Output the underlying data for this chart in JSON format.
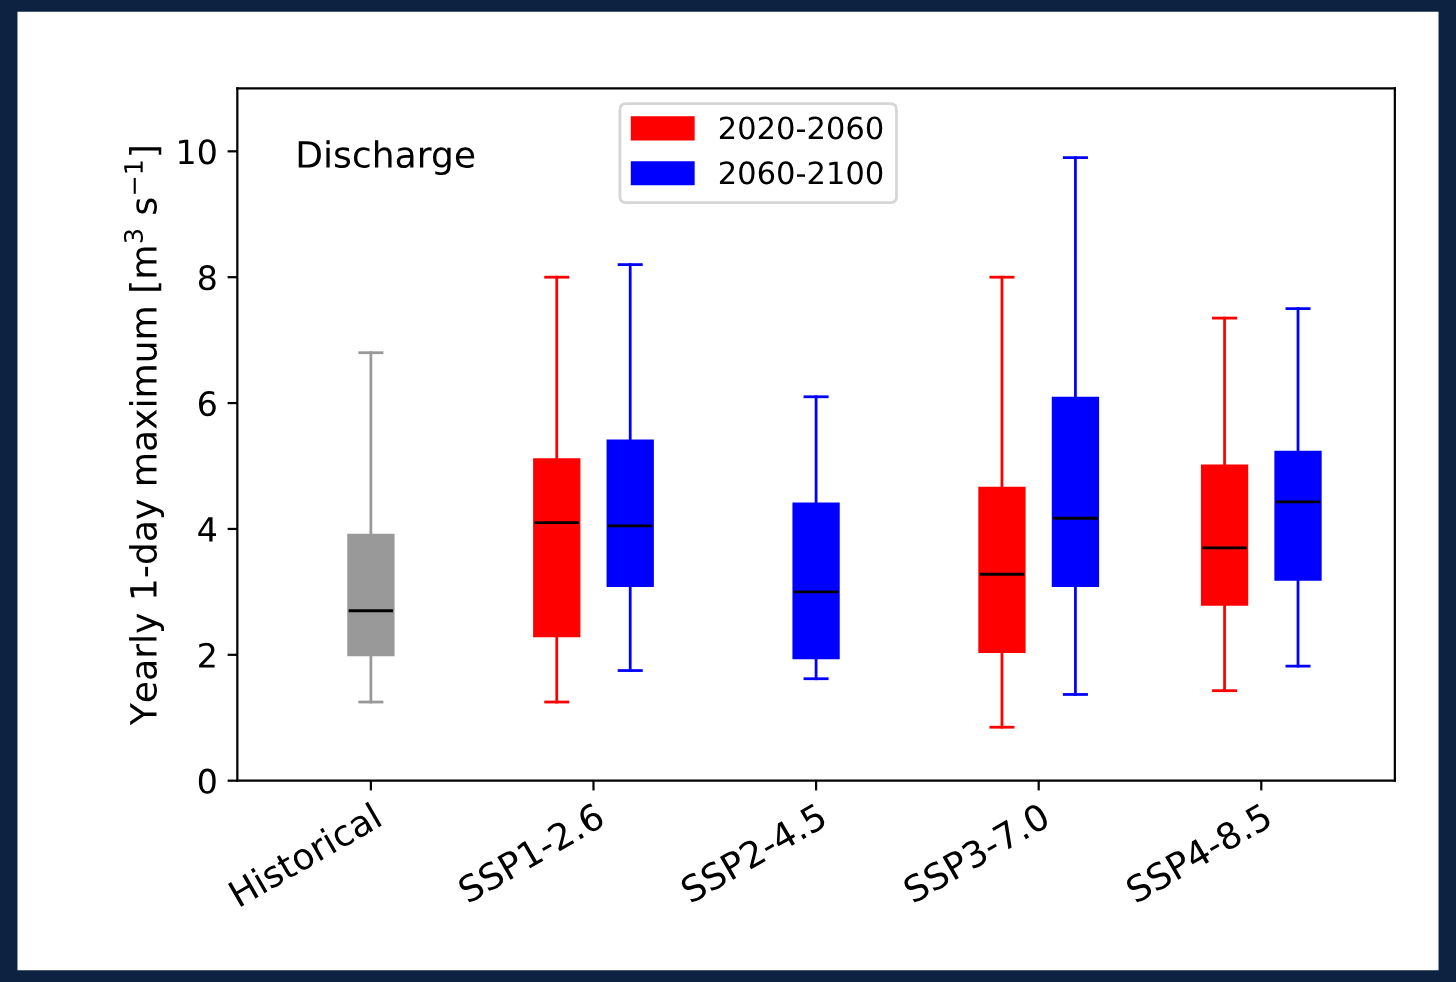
{
  "chart_data": {
    "type": "box",
    "ylabel": "Yearly 1-day maximum [m$^{3}$ s$^{−1}$]",
    "categories": [
      "Historical",
      "SSP1-2.6",
      "SSP2-4.5",
      "SSP3-7.0",
      "SSP4-8.5"
    ],
    "ylim": [
      0,
      11
    ],
    "yticks": [
      0,
      2,
      4,
      6,
      8,
      10
    ],
    "grid": false,
    "legend": "top",
    "annotations": [
      "Discharge"
    ],
    "series": [
      {
        "color": "#999999",
        "boxes": [
          {
            "low": 1.25,
            "q1": 2.0,
            "median": 2.7,
            "q3": 3.9,
            "high": 6.8
          },
          null,
          null,
          null,
          null
        ]
      },
      {
        "name": "2020-2060",
        "color": "#ff0000",
        "boxes": [
          null,
          {
            "low": 1.25,
            "q1": 2.3,
            "median": 4.1,
            "q3": 5.1,
            "high": 8.0
          },
          null,
          {
            "low": 0.85,
            "q1": 2.05,
            "median": 3.28,
            "q3": 4.65,
            "high": 8.0
          },
          {
            "low": 1.43,
            "q1": 2.8,
            "median": 3.7,
            "q3": 5.0,
            "high": 7.35
          }
        ]
      },
      {
        "name": "2060-2100",
        "color": "#0000ff",
        "boxes": [
          null,
          {
            "low": 1.75,
            "q1": 3.1,
            "median": 4.05,
            "q3": 5.4,
            "high": 8.2
          },
          {
            "low": 1.62,
            "q1": 1.95,
            "median": 3.0,
            "q3": 4.4,
            "high": 6.1
          },
          {
            "low": 1.37,
            "q1": 3.1,
            "median": 4.17,
            "q3": 6.08,
            "high": 9.9
          },
          {
            "low": 1.82,
            "q1": 3.2,
            "median": 4.43,
            "q3": 5.22,
            "high": 7.5
          }
        ]
      }
    ]
  }
}
